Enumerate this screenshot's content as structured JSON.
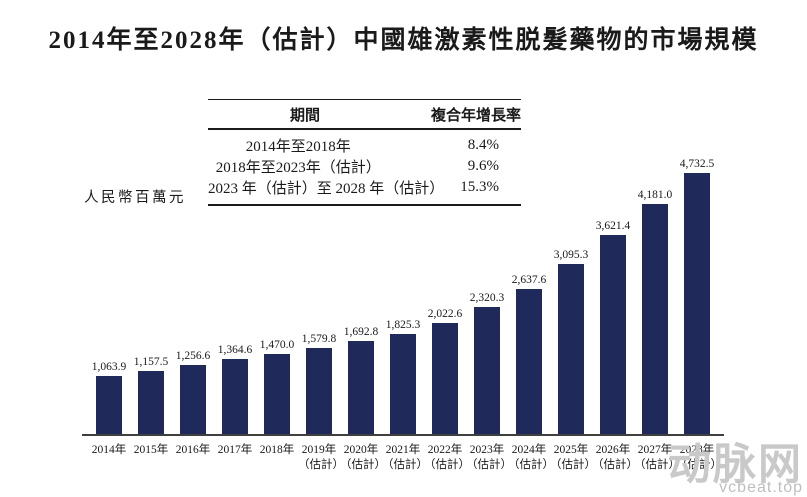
{
  "title": "2014年至2028年（估計）中國雄激素性脱髮藥物的市場規模",
  "y_axis_label": "人民幣百萬元",
  "cagr_table": {
    "headers": [
      "期間",
      "複合年增長率"
    ],
    "rows": [
      {
        "period": "2014年至2018年",
        "cagr": "8.4%"
      },
      {
        "period": "2018年至2023年（估計）",
        "cagr": "9.6%"
      },
      {
        "period": "2023 年（估計）至 2028 年（估計）",
        "cagr": "15.3%"
      }
    ]
  },
  "chart_data": {
    "type": "bar",
    "title": "2014年至2028年（估計）中國雄激素性脱髮藥物的市場規模",
    "ylabel": "人民幣百萬元",
    "xlabel": "",
    "categories": [
      "2014年",
      "2015年",
      "2016年",
      "2017年",
      "2018年",
      "2019年（估計）",
      "2020年（估計）",
      "2021年（估計）",
      "2022年（估計）",
      "2023年（估計）",
      "2024年（估計）",
      "2025年（估計）",
      "2026年（估計）",
      "2027年（估計）",
      "2028年（估計）"
    ],
    "values": [
      1063.9,
      1157.5,
      1256.6,
      1364.6,
      1470.0,
      1579.8,
      1692.8,
      1825.3,
      2022.6,
      2320.3,
      2637.6,
      3095.3,
      3621.4,
      4181.0,
      4732.5
    ],
    "value_labels": [
      "1,063.9",
      "1,157.5",
      "1,256.6",
      "1,364.6",
      "1,470.0",
      "1,579.8",
      "1,692.8",
      "1,825.3",
      "2,022.6",
      "2,320.3",
      "2,637.6",
      "3,095.3",
      "3,621.4",
      "4,181.0",
      "4,732.5"
    ],
    "bar_color": "#1f2a5a",
    "ylim": [
      0,
      4732.5
    ],
    "grid": false,
    "legend": false,
    "y_axis_visible": false
  },
  "watermark": {
    "logo_text": "动脉网",
    "site": "vcbeat.top"
  }
}
